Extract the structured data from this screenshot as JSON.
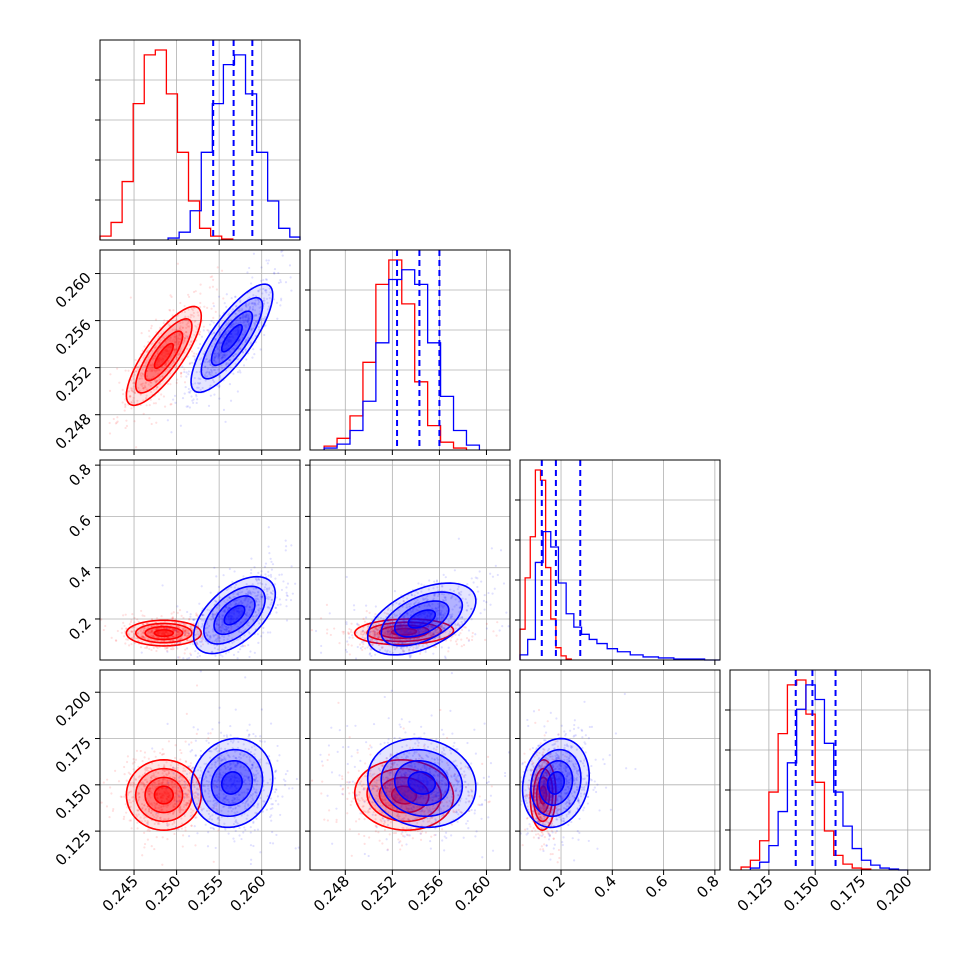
{
  "chart_data": {
    "type": "corner",
    "colors": {
      "series_a": "#ff0000",
      "series_b": "#0000ff"
    },
    "grid": true,
    "dims": [
      {
        "range": [
          0.241,
          0.2645
        ],
        "ticks": [
          0.245,
          0.25,
          0.255,
          0.26
        ],
        "tick_labels": [
          "0.245",
          "0.250",
          "0.255",
          "0.260"
        ],
        "quantiles_b": [
          0.2543,
          0.2567,
          0.2589
        ],
        "hist_a": {
          "bins": [
            0.241,
            0.2423,
            0.2436,
            0.2449,
            0.2462,
            0.2475,
            0.2488,
            0.2501,
            0.2514,
            0.2527,
            0.254,
            0.2553,
            0.2566
          ],
          "counts": [
            4,
            18,
            60,
            140,
            190,
            195,
            150,
            90,
            40,
            12,
            4,
            1
          ]
        },
        "hist_b": {
          "bins": [
            0.249,
            0.2503,
            0.2516,
            0.2529,
            0.2542,
            0.2555,
            0.2568,
            0.2581,
            0.2594,
            0.2607,
            0.262,
            0.2633,
            0.2645
          ],
          "counts": [
            2,
            8,
            30,
            90,
            140,
            180,
            190,
            150,
            90,
            40,
            12,
            3
          ]
        }
      },
      {
        "range": [
          0.245,
          0.262
        ],
        "ticks": [
          0.248,
          0.252,
          0.256,
          0.26
        ],
        "tick_labels": [
          "0.248",
          "0.252",
          "0.256",
          "0.260"
        ],
        "quantiles_b": [
          0.2524,
          0.2543,
          0.256
        ],
        "hist_a": {
          "bins": [
            0.2462,
            0.2473,
            0.2484,
            0.2495,
            0.2506,
            0.2517,
            0.2528,
            0.2539,
            0.255,
            0.2561,
            0.2572,
            0.2583
          ],
          "counts": [
            4,
            12,
            35,
            90,
            170,
            195,
            150,
            70,
            25,
            8,
            2
          ]
        },
        "hist_b": {
          "bins": [
            0.2462,
            0.2473,
            0.2484,
            0.2495,
            0.2506,
            0.2517,
            0.2528,
            0.2539,
            0.255,
            0.2561,
            0.2572,
            0.2583,
            0.2594
          ],
          "counts": [
            2,
            6,
            20,
            50,
            110,
            175,
            185,
            170,
            110,
            55,
            20,
            5
          ]
        }
      },
      {
        "range": [
          0.04,
          0.82
        ],
        "ticks": [
          0.2,
          0.4,
          0.6,
          0.8
        ],
        "tick_labels": [
          "0.2",
          "0.4",
          "0.6",
          "0.8"
        ],
        "left_ticks": [
          0.2,
          0.4,
          0.6,
          0.8
        ],
        "quantiles_b": [
          0.125,
          0.18,
          0.275
        ],
        "hist_a": {
          "bins": [
            0.04,
            0.06,
            0.08,
            0.1,
            0.12,
            0.14,
            0.16,
            0.18,
            0.2,
            0.22,
            0.24
          ],
          "counts": [
            30,
            80,
            120,
            185,
            175,
            90,
            40,
            12,
            4,
            1
          ]
        },
        "hist_b": {
          "bins": [
            0.04,
            0.07,
            0.1,
            0.13,
            0.16,
            0.19,
            0.22,
            0.25,
            0.28,
            0.31,
            0.34,
            0.38,
            0.42,
            0.47,
            0.52,
            0.58,
            0.64,
            0.7,
            0.76,
            0.82
          ],
          "counts": [
            5,
            20,
            95,
            125,
            110,
            75,
            45,
            32,
            25,
            20,
            16,
            11,
            8,
            5,
            3,
            2,
            1,
            1,
            0
          ]
        }
      },
      {
        "range": [
          0.104,
          0.212
        ],
        "ticks": [
          0.125,
          0.15,
          0.175,
          0.2
        ],
        "tick_labels": [
          "0.125",
          "0.150",
          "0.175",
          "0.200"
        ],
        "left_ticks": [
          0.125,
          0.15,
          0.175,
          0.2
        ],
        "quantiles_b": [
          0.1395,
          0.1485,
          0.161
        ],
        "hist_a": {
          "bins": [
            0.11,
            0.115,
            0.12,
            0.125,
            0.13,
            0.135,
            0.14,
            0.145,
            0.15,
            0.155,
            0.16,
            0.165,
            0.17,
            0.175,
            0.18
          ],
          "counts": [
            3,
            10,
            30,
            80,
            140,
            190,
            195,
            160,
            90,
            40,
            15,
            6,
            2,
            1
          ]
        },
        "hist_b": {
          "bins": [
            0.115,
            0.12,
            0.125,
            0.13,
            0.135,
            0.14,
            0.145,
            0.15,
            0.155,
            0.16,
            0.165,
            0.17,
            0.175,
            0.18,
            0.185,
            0.19,
            0.195,
            0.2
          ],
          "counts": [
            2,
            8,
            25,
            60,
            110,
            165,
            190,
            175,
            130,
            80,
            45,
            22,
            10,
            5,
            2,
            1,
            0
          ]
        }
      }
    ],
    "pairs": [
      {
        "x": 0,
        "y": 1,
        "a": {
          "mean": [
            0.2485,
            0.253
          ],
          "sd": [
            0.0022,
            0.0021
          ],
          "rho": 0.8
        },
        "b": {
          "mean": [
            0.2565,
            0.2545
          ],
          "sd": [
            0.0024,
            0.0023
          ],
          "rho": 0.8
        }
      },
      {
        "x": 0,
        "y": 2,
        "a": {
          "mean": [
            0.2485,
            0.145
          ],
          "sd": [
            0.0022,
            0.025
          ],
          "rho": 0.0
        },
        "b": {
          "mean": [
            0.2568,
            0.215
          ],
          "sd": [
            0.0024,
            0.075
          ],
          "rho": 0.55
        }
      },
      {
        "x": 1,
        "y": 2,
        "a": {
          "mean": [
            0.253,
            0.15
          ],
          "sd": [
            0.0021,
            0.025
          ],
          "rho": 0.1
        },
        "b": {
          "mean": [
            0.2545,
            0.2
          ],
          "sd": [
            0.0023,
            0.07
          ],
          "rho": 0.5
        }
      },
      {
        "x": 0,
        "y": 3,
        "a": {
          "mean": [
            0.2485,
            0.1445
          ],
          "sd": [
            0.0022,
            0.0095
          ],
          "rho": 0.0
        },
        "b": {
          "mean": [
            0.2565,
            0.151
          ],
          "sd": [
            0.0024,
            0.012
          ],
          "rho": 0.1
        }
      },
      {
        "x": 1,
        "y": 3,
        "a": {
          "mean": [
            0.253,
            0.1445
          ],
          "sd": [
            0.0021,
            0.0095
          ],
          "rho": -0.05
        },
        "b": {
          "mean": [
            0.2545,
            0.151
          ],
          "sd": [
            0.0023,
            0.012
          ],
          "rho": -0.1
        }
      },
      {
        "x": 2,
        "y": 3,
        "a": {
          "mean": [
            0.13,
            0.1445
          ],
          "sd": [
            0.025,
            0.0095
          ],
          "rho": 0.05
        },
        "b": {
          "mean": [
            0.18,
            0.151
          ],
          "sd": [
            0.065,
            0.012
          ],
          "rho": 0.15
        }
      }
    ]
  }
}
